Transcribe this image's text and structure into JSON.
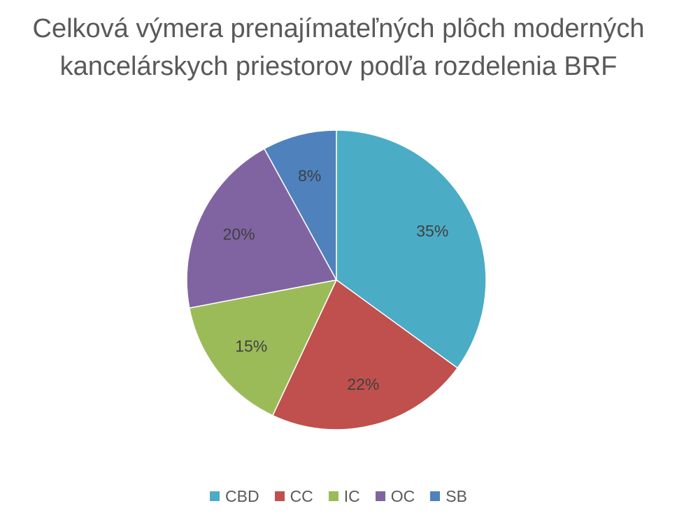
{
  "chart_data": {
    "type": "pie",
    "title_lines": [
      "Celková výmera prenajímateľných plôch moderných",
      "kancelárskych priestorov podľa rozdelenia BRF"
    ],
    "categories": [
      "CBD",
      "CC",
      "IC",
      "OC",
      "SB"
    ],
    "values": [
      35,
      22,
      15,
      20,
      8
    ],
    "labels": [
      "35%",
      "22%",
      "15%",
      "20%",
      "8%"
    ],
    "colors": [
      "#4BACC6",
      "#C0504D",
      "#9BBB59",
      "#8064A2",
      "#4F81BD"
    ],
    "legend_position": "bottom",
    "start_angle": "12 o'clock",
    "direction": "clockwise"
  }
}
